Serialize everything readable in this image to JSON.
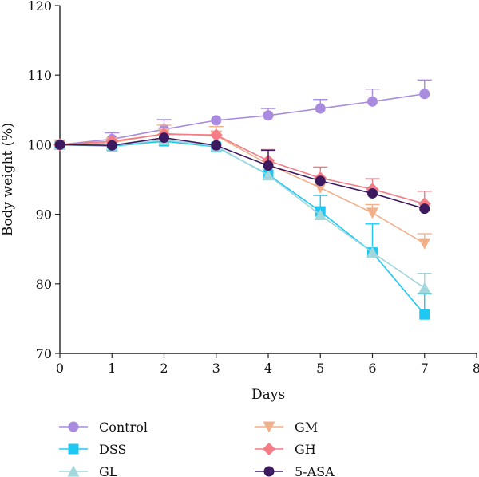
{
  "chart_data": {
    "type": "line",
    "xlabel": "Days",
    "ylabel": "Body weight (%)",
    "xlim": [
      0,
      8
    ],
    "ylim": [
      70,
      120
    ],
    "xticks": [
      "0",
      "1",
      "2",
      "3",
      "4",
      "5",
      "6",
      "7",
      "8"
    ],
    "yticks": [
      "70",
      "80",
      "90",
      "100",
      "110",
      "120"
    ],
    "grid": false,
    "legend_position": "bottom",
    "x": [
      0,
      1,
      2,
      3,
      4,
      5,
      6,
      7
    ],
    "series": [
      {
        "name": "Control",
        "color": "#a98be0",
        "marker": "circle",
        "values": [
          100,
          100.8,
          102.2,
          103.5,
          104.2,
          105.2,
          106.2,
          107.3
        ],
        "errors": [
          0,
          0.9,
          1.4,
          0,
          1.0,
          1.3,
          1.8,
          2.0
        ]
      },
      {
        "name": "DSS",
        "color": "#1ec8f2",
        "marker": "square",
        "values": [
          100,
          99.8,
          100.5,
          99.7,
          95.7,
          90.4,
          84.5,
          75.6
        ],
        "errors": [
          0,
          0,
          0,
          0,
          0,
          2.3,
          4.1,
          3.0
        ]
      },
      {
        "name": "GL",
        "color": "#a2d7dc",
        "marker": "triangle-up",
        "values": [
          100,
          99.9,
          100.7,
          99.8,
          95.6,
          89.9,
          84.5,
          79.4
        ],
        "errors": [
          0,
          0,
          0,
          0,
          0,
          0,
          0,
          2.1
        ]
      },
      {
        "name": "GM",
        "color": "#f2b08a",
        "marker": "triangle-down",
        "values": [
          100,
          100.3,
          101.6,
          101.3,
          97.2,
          93.8,
          90.2,
          85.8
        ],
        "errors": [
          0,
          0,
          1.2,
          1.3,
          0,
          0,
          1.2,
          1.4
        ]
      },
      {
        "name": "GH",
        "color": "#f47c86",
        "marker": "diamond",
        "values": [
          100,
          100.5,
          101.5,
          101.4,
          97.7,
          95.2,
          93.6,
          91.5
        ],
        "errors": [
          0,
          0,
          0,
          0,
          1.6,
          1.6,
          1.5,
          1.8
        ]
      },
      {
        "name": "5-ASA",
        "color": "#3d1a5f",
        "marker": "circle",
        "values": [
          100,
          99.9,
          101.0,
          99.9,
          97.0,
          94.8,
          93.0,
          90.8
        ],
        "errors": [
          0,
          0,
          0,
          0,
          2.2,
          0,
          0,
          0
        ]
      }
    ]
  }
}
